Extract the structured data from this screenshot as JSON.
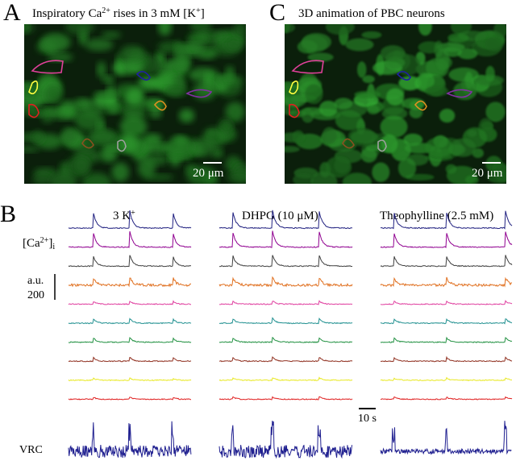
{
  "panels": {
    "A": {
      "letter": "A",
      "title": [
        "Inspiratory Ca",
        "2+",
        " rises in 3 mM [K",
        "+",
        "]"
      ],
      "scale": "20 μm"
    },
    "C": {
      "letter": "C",
      "title": [
        "3D animation of PBC neurons"
      ],
      "scale": "20 μm"
    },
    "B": {
      "letter": "B",
      "columns": [
        [
          "3 K",
          "+"
        ],
        [
          "DHPG (10 μM)"
        ],
        [
          "Theophylline (2.5 mM)"
        ]
      ],
      "calcium_label": [
        "[Ca",
        "2+",
        "]",
        "i"
      ],
      "amplitude_unit": "a.u.",
      "amplitude_value": "200",
      "time_scale": "10 s",
      "vrc_label": "VRC"
    }
  }
}
